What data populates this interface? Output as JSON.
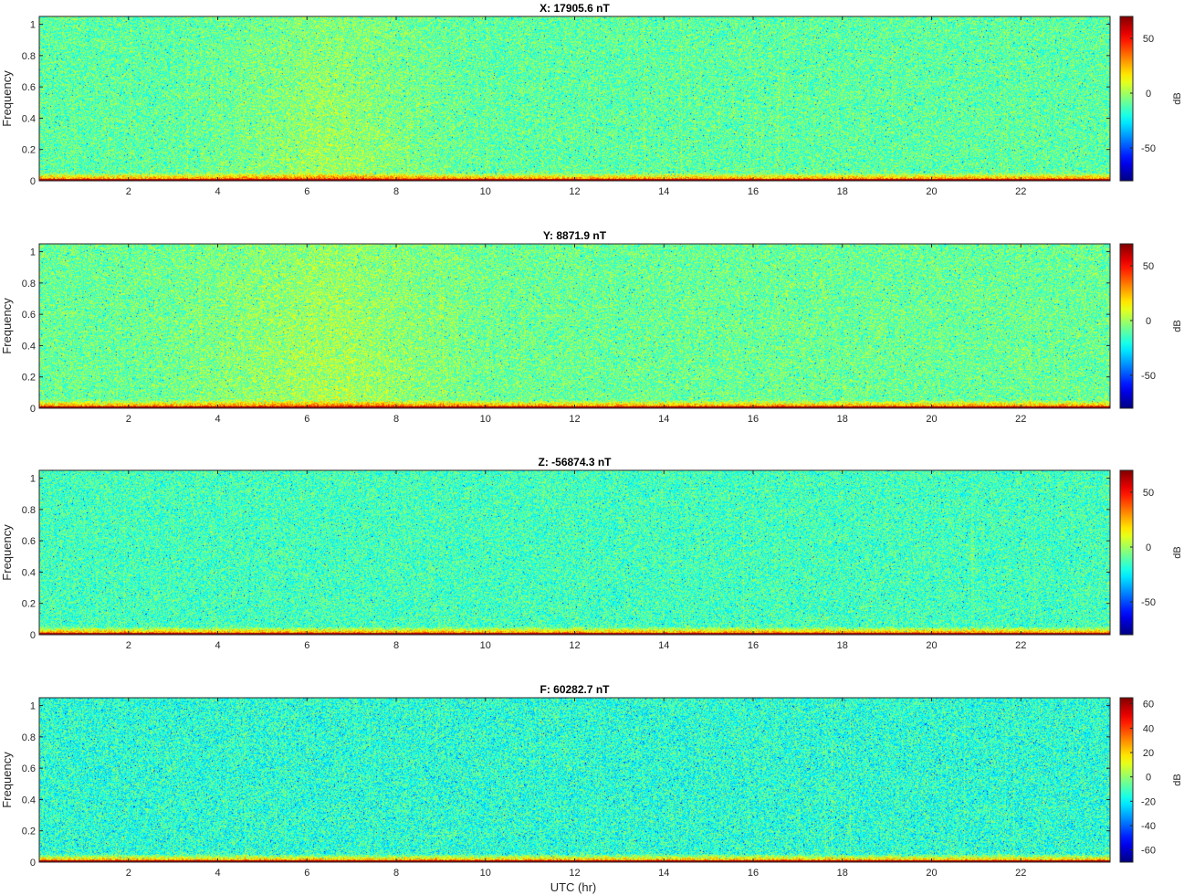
{
  "figure": {
    "xlabel": "UTC (hr)"
  },
  "chart_data": [
    {
      "type": "heatmap",
      "title": "X: 17905.6 nT",
      "ylabel": "Frequency",
      "xlabel": "",
      "xlim": [
        0,
        24
      ],
      "ylim": [
        0,
        1.05
      ],
      "xticks": [
        2,
        4,
        6,
        8,
        10,
        12,
        14,
        16,
        18,
        20,
        22
      ],
      "yticks": [
        0,
        0.2,
        0.4,
        0.6,
        0.8,
        1
      ],
      "colorbar": {
        "label": "dB",
        "ticks": [
          50,
          0,
          -50
        ],
        "range": [
          -80,
          70
        ],
        "colormap": "jet"
      },
      "features": {
        "background_db": -10,
        "low_freq_band_db": 55,
        "active_intervals_hr": [
          [
            3,
            10
          ]
        ]
      }
    },
    {
      "type": "heatmap",
      "title": "Y: 8871.9 nT",
      "ylabel": "Frequency",
      "xlabel": "",
      "xlim": [
        0,
        24
      ],
      "ylim": [
        0,
        1.05
      ],
      "xticks": [
        2,
        4,
        6,
        8,
        10,
        12,
        14,
        16,
        18,
        20,
        22
      ],
      "yticks": [
        0,
        0.2,
        0.4,
        0.6,
        0.8,
        1
      ],
      "colorbar": {
        "label": "dB",
        "ticks": [
          50,
          0,
          -50
        ],
        "range": [
          -80,
          70
        ],
        "colormap": "jet"
      },
      "features": {
        "background_db": -8,
        "low_freq_band_db": 55,
        "active_intervals_hr": [
          [
            2.5,
            10.5
          ]
        ]
      }
    },
    {
      "type": "heatmap",
      "title": "Z: -56874.3 nT",
      "ylabel": "Frequency",
      "xlabel": "",
      "xlim": [
        0,
        24
      ],
      "ylim": [
        0,
        1.05
      ],
      "xticks": [
        2,
        4,
        6,
        8,
        10,
        12,
        14,
        16,
        18,
        20,
        22
      ],
      "yticks": [
        0,
        0.2,
        0.4,
        0.6,
        0.8,
        1
      ],
      "colorbar": {
        "label": "dB",
        "ticks": [
          50,
          0,
          -50
        ],
        "range": [
          -80,
          70
        ],
        "colormap": "jet"
      },
      "features": {
        "background_db": -14,
        "low_freq_band_db": 55,
        "active_intervals_hr": []
      }
    },
    {
      "type": "heatmap",
      "title": "F: 60282.7 nT",
      "ylabel": "Frequency",
      "xlabel": "UTC (hr)",
      "xlim": [
        0,
        24
      ],
      "ylim": [
        0,
        1.05
      ],
      "xticks": [
        2,
        4,
        6,
        8,
        10,
        12,
        14,
        16,
        18,
        20,
        22
      ],
      "yticks": [
        0,
        0.2,
        0.4,
        0.6,
        0.8,
        1
      ],
      "colorbar": {
        "label": "dB",
        "ticks": [
          60,
          40,
          20,
          0,
          -20,
          -40,
          -60
        ],
        "range": [
          -70,
          65
        ],
        "colormap": "jet"
      },
      "features": {
        "background_db": -14,
        "low_freq_band_db": 50,
        "active_intervals_hr": []
      }
    }
  ]
}
